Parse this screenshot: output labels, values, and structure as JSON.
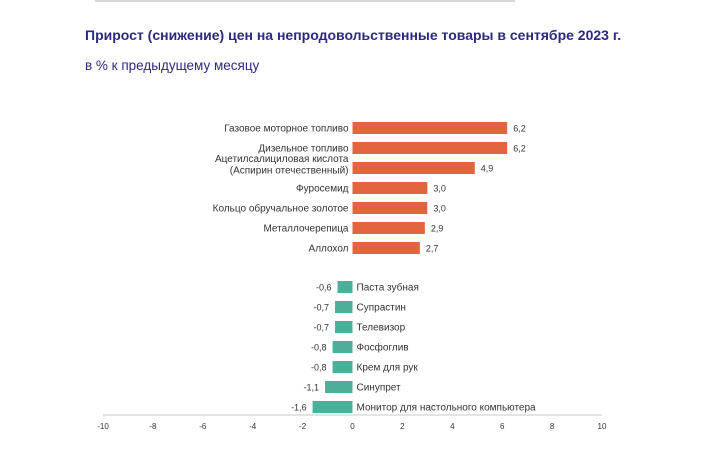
{
  "header": {
    "title": "Прирост (снижение) цен на непродовольственные товары в сентябре 2023 г.",
    "subtitle": "в % к предыдущему месяцу"
  },
  "colors": {
    "positive": "#e2653f",
    "negative": "#4caf9a",
    "title": "#2b2a7e",
    "axis": "#c8c8c8",
    "text": "#333333"
  },
  "chart_data": {
    "type": "bar",
    "orientation": "horizontal",
    "title": "Прирост (снижение) цен на непродовольственные товары в сентябре 2023 г.",
    "subtitle": "в % к предыдущему месяцу",
    "xlim": [
      -10,
      10
    ],
    "ticks": [
      -10,
      -8,
      -6,
      -4,
      -2,
      0,
      2,
      4,
      6,
      8,
      10
    ],
    "tick_labels": [
      "-10",
      "-8",
      "-6",
      "-4",
      "-2",
      "0",
      "2",
      "4",
      "6",
      "8",
      "10"
    ],
    "grid": false,
    "legend": "none",
    "bars": [
      {
        "label": "Газовое моторное топливо",
        "value": 6.2,
        "value_label": "6,2"
      },
      {
        "label": "Дизельное топливо",
        "value": 6.2,
        "value_label": "6,2"
      },
      {
        "label": "Ацетилсалициловая кислота (Аспирин отечественный)",
        "label_lines": [
          "Ацетилсалициловая кислота",
          "(Аспирин отечественный)"
        ],
        "value": 4.9,
        "value_label": "4,9"
      },
      {
        "label": "Фуросемид",
        "value": 3.0,
        "value_label": "3,0"
      },
      {
        "label": "Кольцо обручальное золотое",
        "value": 3.0,
        "value_label": "3,0"
      },
      {
        "label": "Металлочерепица",
        "value": 2.9,
        "value_label": "2,9"
      },
      {
        "label": "Аллохол",
        "value": 2.7,
        "value_label": "2,7"
      },
      {
        "label": "Паста зубная",
        "value": -0.6,
        "value_label": "-0,6"
      },
      {
        "label": "Супрастин",
        "value": -0.7,
        "value_label": "-0,7"
      },
      {
        "label": "Телевизор",
        "value": -0.7,
        "value_label": "-0,7"
      },
      {
        "label": "Фосфоглив",
        "value": -0.8,
        "value_label": "-0,8"
      },
      {
        "label": "Крем для рук",
        "value": -0.8,
        "value_label": "-0,8"
      },
      {
        "label": "Синупрет",
        "value": -1.1,
        "value_label": "-1,1"
      },
      {
        "label": "Монитор для настольного компьютера",
        "value": -1.6,
        "value_label": "-1,6"
      }
    ]
  }
}
